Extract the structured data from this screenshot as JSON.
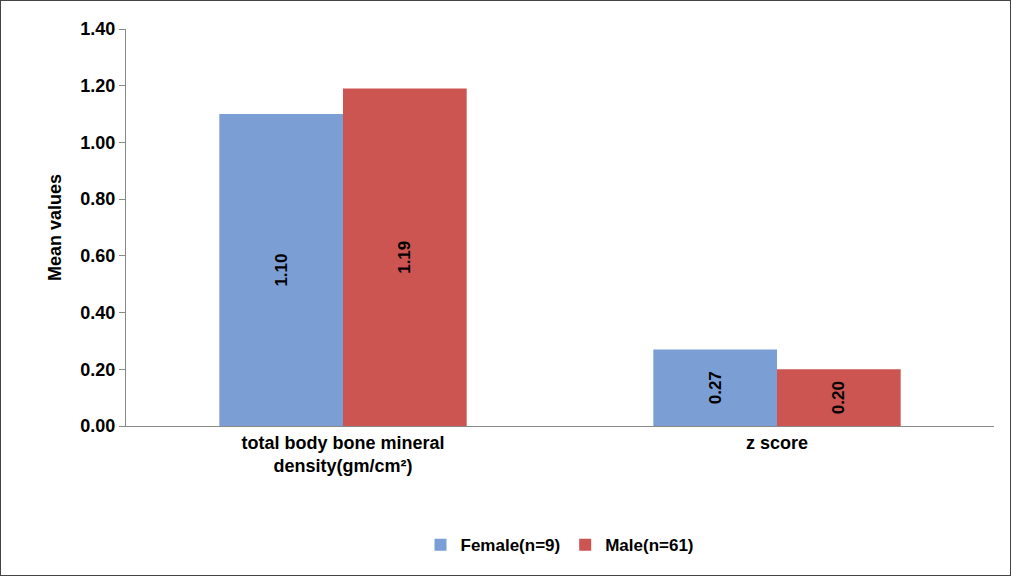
{
  "chart_data": {
    "type": "bar",
    "categories": [
      "total body bone mineral density(gm/cm²)",
      "z score"
    ],
    "series": [
      {
        "name": "Female(n=9)",
        "color": "#7b9fd4",
        "values": [
          1.1,
          0.27
        ],
        "value_labels": [
          "1.10",
          "0.27"
        ]
      },
      {
        "name": "Male(n=61)",
        "color": "#cc5552",
        "values": [
          1.19,
          0.2
        ],
        "value_labels": [
          "1.19",
          "0.20"
        ]
      }
    ],
    "y_label": "Mean values",
    "ylim": [
      0,
      1.4
    ],
    "yticks": [
      {
        "value": 0,
        "label": "0.00"
      },
      {
        "value": 0.2,
        "label": "0.20"
      },
      {
        "value": 0.4,
        "label": "0.40"
      },
      {
        "value": 0.6,
        "label": "0.60"
      },
      {
        "value": 0.8,
        "label": "0.80"
      },
      {
        "value": 1.0,
        "label": "1.00"
      },
      {
        "value": 1.2,
        "label": "1.20"
      },
      {
        "value": 1.4,
        "label": "1.40"
      }
    ],
    "grid": false,
    "legend": "bottom",
    "data_labels": true
  }
}
